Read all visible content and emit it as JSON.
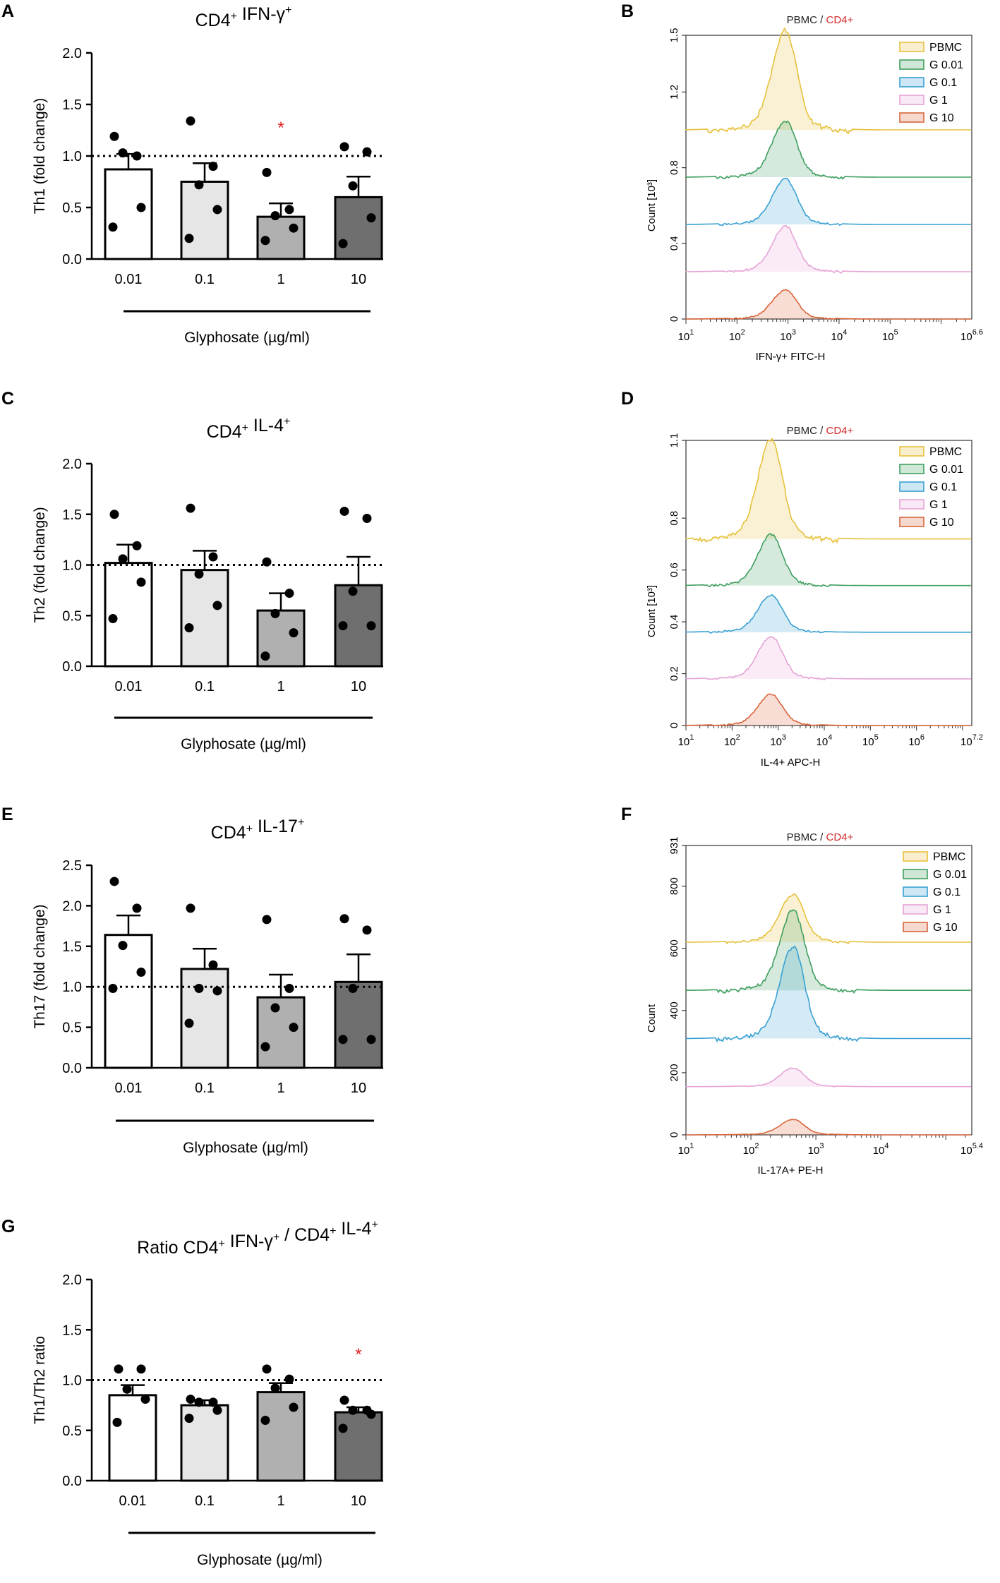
{
  "figure": {
    "panel_letters": [
      "A",
      "B",
      "C",
      "D",
      "E",
      "F",
      "G"
    ]
  },
  "chart_data": [
    {
      "id": "A",
      "type": "bar",
      "title": "CD4⁺ IFN-γ⁺",
      "xlabel": "Glyphosate (µg/ml)",
      "ylabel": "Th1 (fold change)",
      "categories": [
        "0.01",
        "0.1",
        "1",
        "10"
      ],
      "values": [
        0.87,
        0.75,
        0.41,
        0.6
      ],
      "sem": [
        0.15,
        0.18,
        0.13,
        0.2
      ],
      "points": [
        [
          1.19,
          1.0,
          1.03,
          0.5,
          0.31
        ],
        [
          1.34,
          0.9,
          0.72,
          0.48,
          0.2
        ],
        [
          0.84,
          0.48,
          0.42,
          0.3,
          0.18
        ],
        [
          1.09,
          1.04,
          0.71,
          0.4,
          0.15
        ]
      ],
      "significance": [
        "",
        "",
        "*",
        ""
      ],
      "ylim": [
        0,
        2.0
      ],
      "yticks": [
        "0.0",
        "0.5",
        "1.0",
        "1.5",
        "2.0"
      ],
      "reference_line": 1.0,
      "bar_colors": [
        "#ffffff",
        "#e6e6e6",
        "#b0b0b0",
        "#6f6f6f"
      ]
    },
    {
      "id": "C",
      "type": "bar",
      "title": "CD4⁺ IL-4⁺",
      "xlabel": "Glyphosate (µg/ml)",
      "ylabel": "Th2 (fold change)",
      "categories": [
        "0.01",
        "0.1",
        "1",
        "10"
      ],
      "values": [
        1.02,
        0.95,
        0.55,
        0.8
      ],
      "sem": [
        0.18,
        0.19,
        0.17,
        0.28
      ],
      "points": [
        [
          1.5,
          1.19,
          1.06,
          0.83,
          0.47
        ],
        [
          1.56,
          1.08,
          0.91,
          0.6,
          0.38
        ],
        [
          1.03,
          0.72,
          0.52,
          0.33,
          0.1
        ],
        [
          1.53,
          1.46,
          0.74,
          0.4,
          0.4
        ]
      ],
      "significance": [
        "",
        "",
        "",
        ""
      ],
      "ylim": [
        0,
        2.0
      ],
      "yticks": [
        "0.0",
        "0.5",
        "1.0",
        "1.5",
        "2.0"
      ],
      "reference_line": 1.0,
      "bar_colors": [
        "#ffffff",
        "#e6e6e6",
        "#b0b0b0",
        "#6f6f6f"
      ]
    },
    {
      "id": "E",
      "type": "bar",
      "title": "CD4⁺ IL-17⁺",
      "xlabel": "Glyphosate (µg/ml)",
      "ylabel": "Th17 (fold change)",
      "categories": [
        "0.01",
        "0.1",
        "1",
        "10"
      ],
      "values": [
        1.64,
        1.22,
        0.87,
        1.06
      ],
      "sem": [
        0.24,
        0.25,
        0.28,
        0.34
      ],
      "points": [
        [
          2.3,
          1.97,
          1.51,
          1.18,
          0.98
        ],
        [
          1.97,
          1.27,
          0.98,
          0.95,
          0.55
        ],
        [
          1.83,
          0.98,
          0.74,
          0.5,
          0.26
        ],
        [
          1.84,
          1.7,
          0.98,
          0.35,
          0.35
        ]
      ],
      "significance": [
        "",
        "",
        "",
        ""
      ],
      "ylim": [
        0,
        2.5
      ],
      "yticks": [
        "0.0",
        "0.5",
        "1.0",
        "1.5",
        "2.0",
        "2.5"
      ],
      "reference_line": 1.0,
      "bar_colors": [
        "#ffffff",
        "#e6e6e6",
        "#b0b0b0",
        "#6f6f6f"
      ]
    },
    {
      "id": "G",
      "type": "bar",
      "title": "Ratio CD4⁺ IFN-γ⁺ / CD4⁺ IL-4⁺",
      "xlabel": "Glyphosate (µg/ml)",
      "ylabel": "Th1/Th2 ratio",
      "categories": [
        "0.01",
        "0.1",
        "1",
        "10"
      ],
      "values": [
        0.85,
        0.75,
        0.88,
        0.68
      ],
      "sem": [
        0.1,
        0.05,
        0.09,
        0.05
      ],
      "points": [
        [
          1.11,
          1.11,
          0.91,
          0.81,
          0.58
        ],
        [
          0.81,
          0.78,
          0.78,
          0.7,
          0.62
        ],
        [
          1.11,
          1.01,
          0.92,
          0.73,
          0.6
        ],
        [
          0.8,
          0.7,
          0.7,
          0.66,
          0.52
        ]
      ],
      "significance": [
        "",
        "",
        "",
        "*"
      ],
      "ylim": [
        0,
        2.0
      ],
      "yticks": [
        "0.0",
        "0.5",
        "1.0",
        "1.5",
        "2.0"
      ],
      "reference_line": 1.0,
      "bar_colors": [
        "#ffffff",
        "#e6e6e6",
        "#b0b0b0",
        "#6f6f6f"
      ]
    },
    {
      "id": "B",
      "type": "histogram",
      "title_parts": [
        "PBMC",
        " / ",
        "CD4+"
      ],
      "title_colors": [
        "#222222",
        "#222222",
        "#d42a2a"
      ],
      "xlabel": "IFN-γ+ FITC-H",
      "ylabel": "Count [10³]",
      "ytick_labels": [
        "0",
        "0.4",
        "0.8",
        "1.2",
        "1.5"
      ],
      "ytick_values": [
        0,
        0.4,
        0.8,
        1.2,
        1.5
      ],
      "ymax": 1.5,
      "xtick_labels": [
        [
          "10",
          "1"
        ],
        [
          "10",
          "2"
        ],
        [
          "10",
          "3"
        ],
        [
          "10",
          "4"
        ],
        [
          "10",
          "5"
        ],
        [
          "10",
          "6.6"
        ]
      ],
      "xlog_max": 6.6,
      "peak_log": 2.95,
      "series": [
        {
          "name": "PBMC",
          "color": "#e6c13c",
          "baseline": 1.0,
          "peak": 0.48
        },
        {
          "name": "G 0.01",
          "color": "#3f9f5f",
          "baseline": 0.75,
          "peak": 0.27
        },
        {
          "name": "G 0.1",
          "color": "#3aa1d2",
          "baseline": 0.5,
          "peak": 0.22
        },
        {
          "name": "G 1",
          "color": "#e6a4d6",
          "baseline": 0.25,
          "peak": 0.22
        },
        {
          "name": "G 10",
          "color": "#d9663c",
          "baseline": 0.0,
          "peak": 0.14
        }
      ]
    },
    {
      "id": "D",
      "type": "histogram",
      "title_parts": [
        "PBMC",
        " / ",
        "CD4+"
      ],
      "title_colors": [
        "#222222",
        "#222222",
        "#d42a2a"
      ],
      "xlabel": "IL-4+ APC-H",
      "ylabel": "Count [10³]",
      "ytick_labels": [
        "0",
        "0.2",
        "0.4",
        "0.6",
        "0.8",
        "1.1"
      ],
      "ytick_values": [
        0,
        0.2,
        0.4,
        0.6,
        0.8,
        1.1
      ],
      "ymax": 1.1,
      "xtick_labels": [
        [
          "10",
          "1"
        ],
        [
          "10",
          "2"
        ],
        [
          "10",
          "3"
        ],
        [
          "10",
          "4"
        ],
        [
          "10",
          "5"
        ],
        [
          "10",
          "6"
        ],
        [
          "10",
          "7.2"
        ]
      ],
      "xlog_max": 7.2,
      "peak_log": 2.85,
      "series": [
        {
          "name": "PBMC",
          "color": "#e6c13c",
          "baseline": 0.72,
          "peak": 0.35
        },
        {
          "name": "G 0.01",
          "color": "#3f9f5f",
          "baseline": 0.54,
          "peak": 0.18
        },
        {
          "name": "G 0.1",
          "color": "#3aa1d2",
          "baseline": 0.36,
          "peak": 0.13
        },
        {
          "name": "G 1",
          "color": "#e6a4d6",
          "baseline": 0.18,
          "peak": 0.15
        },
        {
          "name": "G 10",
          "color": "#d9663c",
          "baseline": 0.0,
          "peak": 0.11
        }
      ]
    },
    {
      "id": "F",
      "type": "histogram",
      "title_parts": [
        "PBMC",
        " / ",
        "CD4+"
      ],
      "title_colors": [
        "#222222",
        "#222222",
        "#d42a2a"
      ],
      "xlabel": "IL-17A+ PE-H",
      "ylabel": "Count",
      "ytick_labels": [
        "0",
        "200",
        "400",
        "600",
        "800",
        "931"
      ],
      "ytick_values": [
        0,
        200,
        400,
        600,
        800,
        931
      ],
      "ymax": 931,
      "xtick_labels": [
        [
          "10",
          "1"
        ],
        [
          "10",
          "2"
        ],
        [
          "10",
          "3"
        ],
        [
          "10",
          "4"
        ],
        [
          "10",
          "5.4"
        ]
      ],
      "xlog_max": 5.4,
      "peak_log": 2.65,
      "series": [
        {
          "name": "PBMC",
          "color": "#e6c13c",
          "baseline": 620,
          "peak": 140
        },
        {
          "name": "G 0.01",
          "color": "#3f9f5f",
          "baseline": 465,
          "peak": 235
        },
        {
          "name": "G 0.1",
          "color": "#3aa1d2",
          "baseline": 310,
          "peak": 270
        },
        {
          "name": "G 1",
          "color": "#e6a4d6",
          "baseline": 155,
          "peak": 55
        },
        {
          "name": "G 10",
          "color": "#d9663c",
          "baseline": 0,
          "peak": 45
        }
      ]
    }
  ]
}
